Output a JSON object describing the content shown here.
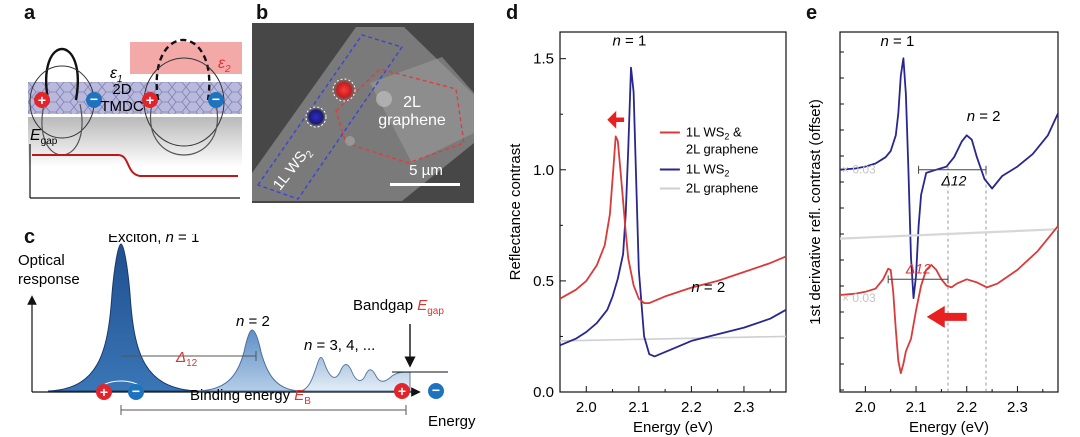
{
  "panels": {
    "a": {
      "label": "a",
      "eps1": "ε",
      "eps1_sub": "1",
      "eps2": "ε",
      "eps2_sub": "2",
      "material_line1": "2D",
      "material_line2": "TMDC",
      "egap_main": "E",
      "egap_sub": "gap"
    },
    "b": {
      "label": "b",
      "region_ws2": "1L WS",
      "region_ws2_sub": "2",
      "region_graphene_line1": "2L",
      "region_graphene_line2": "graphene",
      "scale_bar": "5 µm"
    },
    "c": {
      "label": "c",
      "exciton_label": "Exciton, ",
      "exciton_n": "n",
      "exciton_eq": " = 1",
      "y_label_line1": "Optical",
      "y_label_line2": "response",
      "n2_n": "n",
      "n2_eq": " = 2",
      "n345_n": "n",
      "n345_eq": " = 3, 4, ...",
      "bandgap_text": "Bandgap ",
      "bandgap_E": "E",
      "bandgap_sub": "gap",
      "delta_main": "Δ",
      "delta_sub": "12",
      "binding_text": "Binding energy ",
      "binding_E": "E",
      "binding_sub": "B",
      "x_label": "Energy"
    }
  },
  "chart_data": [
    {
      "panel": "d",
      "type": "line",
      "label": "d",
      "xlabel": "Energy (eV)",
      "ylabel": "Reflectance contrast",
      "xlim": [
        1.95,
        2.38
      ],
      "ylim": [
        0.0,
        1.62
      ],
      "xticks": [
        "2.0",
        "2.1",
        "2.2",
        "2.3"
      ],
      "yticks": [
        "0.0",
        "0.5",
        "1.0",
        "1.5"
      ],
      "annotations": {
        "n1": "n = 1",
        "n2": "n = 2"
      },
      "legend": {
        "placement": "top-right",
        "entries": [
          {
            "text": "1L WS",
            "sub": "2",
            "suffix": " &",
            "line2": "2L graphene",
            "color": "#d93a3a"
          },
          {
            "text": "1L WS",
            "sub": "2",
            "suffix": "",
            "line2": "",
            "color": "#27278f"
          },
          {
            "text": "2L graphene",
            "sub": "",
            "suffix": "",
            "line2": "",
            "color": "#cfcfcf"
          }
        ]
      },
      "series": [
        {
          "name": "1L WS2 & 2L graphene",
          "color": "#d93a3a",
          "x": [
            1.95,
            1.98,
            2.0,
            2.02,
            2.035,
            2.045,
            2.052,
            2.056,
            2.06,
            2.065,
            2.07,
            2.075,
            2.08,
            2.09,
            2.1,
            2.11,
            2.12,
            2.15,
            2.2,
            2.25,
            2.3,
            2.35,
            2.38
          ],
          "y": [
            0.42,
            0.46,
            0.5,
            0.57,
            0.66,
            0.8,
            1.02,
            1.15,
            1.13,
            1.0,
            0.86,
            0.72,
            0.6,
            0.48,
            0.42,
            0.4,
            0.4,
            0.43,
            0.47,
            0.5,
            0.54,
            0.58,
            0.61
          ]
        },
        {
          "name": "1L WS2",
          "color": "#27278f",
          "x": [
            1.95,
            1.98,
            2.0,
            2.02,
            2.04,
            2.05,
            2.06,
            2.07,
            2.075,
            2.08,
            2.085,
            2.09,
            2.095,
            2.1,
            2.11,
            2.12,
            2.13,
            2.14,
            2.16,
            2.2,
            2.25,
            2.3,
            2.35,
            2.38
          ],
          "y": [
            0.21,
            0.24,
            0.27,
            0.31,
            0.37,
            0.43,
            0.51,
            0.62,
            0.8,
            1.1,
            1.46,
            1.35,
            0.95,
            0.55,
            0.25,
            0.17,
            0.16,
            0.17,
            0.19,
            0.23,
            0.26,
            0.29,
            0.33,
            0.37
          ]
        },
        {
          "name": "2L graphene",
          "color": "#cfcfcf",
          "x": [
            1.95,
            2.38
          ],
          "y": [
            0.23,
            0.25
          ]
        }
      ]
    },
    {
      "panel": "e",
      "type": "line",
      "label": "e",
      "xlabel": "Energy (eV)",
      "ylabel": "1st derivative refl. contrast (offset)",
      "xlim": [
        1.95,
        2.38
      ],
      "ylim": [
        -3.55,
        2.2
      ],
      "xticks": [
        "2.0",
        "2.1",
        "2.2",
        "2.3"
      ],
      "scale_top": "× 0.03",
      "scale_bottom": "× 0.03",
      "annotations": {
        "n1": "n = 1",
        "n2": "n = 2",
        "delta_top": "Δ12",
        "delta_bottom": "Δ12"
      },
      "dashed_x": [
        2.163,
        2.238
      ],
      "series": [
        {
          "name": "1L WS2 (derivative)",
          "color": "#27278f",
          "x": [
            1.95,
            1.98,
            2.0,
            2.02,
            2.04,
            2.05,
            2.06,
            2.065,
            2.07,
            2.075,
            2.08,
            2.085,
            2.09,
            2.095,
            2.1,
            2.105,
            2.11,
            2.12,
            2.14,
            2.16,
            2.175,
            2.19,
            2.2,
            2.21,
            2.22,
            2.235,
            2.25,
            2.27,
            2.3,
            2.33,
            2.36,
            2.38
          ],
          "y": [
            0.0,
            0.02,
            0.05,
            0.1,
            0.2,
            0.3,
            0.55,
            0.9,
            1.5,
            1.78,
            1.2,
            0.0,
            -1.4,
            -2.05,
            -1.7,
            -0.9,
            -0.4,
            -0.05,
            0.0,
            0.05,
            0.2,
            0.45,
            0.55,
            0.48,
            0.2,
            -0.15,
            -0.3,
            -0.1,
            0.05,
            0.25,
            0.55,
            0.9
          ]
        },
        {
          "name": "2L graphene (derivative)",
          "color": "#d7d7d7",
          "x": [
            1.95,
            2.38
          ],
          "y": [
            -1.1,
            -0.95
          ]
        },
        {
          "name": "1L WS2 & 2L graphene (derivative)",
          "color": "#d93a3a",
          "x": [
            1.95,
            1.98,
            2.0,
            2.02,
            2.035,
            2.045,
            2.05,
            2.055,
            2.06,
            2.065,
            2.07,
            2.075,
            2.08,
            2.09,
            2.1,
            2.11,
            2.12,
            2.13,
            2.14,
            2.15,
            2.16,
            2.17,
            2.18,
            2.2,
            2.22,
            2.24,
            2.26,
            2.3,
            2.34,
            2.38
          ],
          "y": [
            -2.0,
            -1.98,
            -1.95,
            -1.9,
            -1.75,
            -1.58,
            -1.6,
            -1.95,
            -2.55,
            -3.05,
            -3.25,
            -3.1,
            -2.9,
            -2.7,
            -2.25,
            -1.85,
            -1.6,
            -1.52,
            -1.6,
            -1.75,
            -1.85,
            -1.88,
            -1.82,
            -1.75,
            -1.8,
            -1.88,
            -1.82,
            -1.6,
            -1.3,
            -0.9
          ]
        }
      ]
    }
  ]
}
